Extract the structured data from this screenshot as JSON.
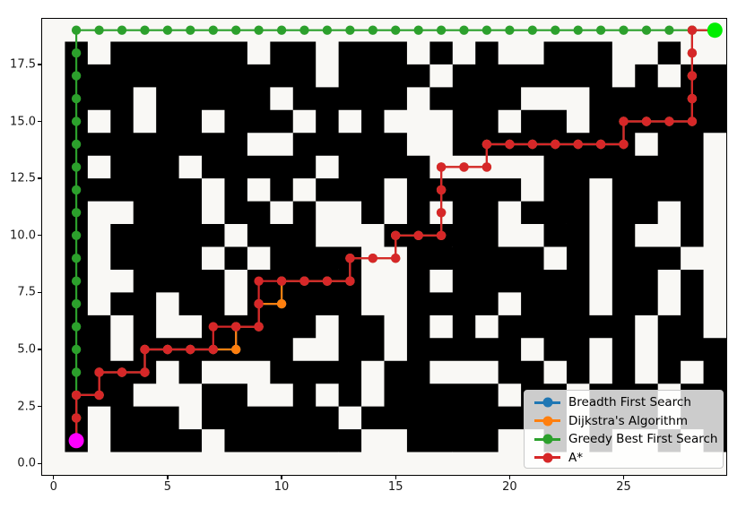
{
  "chart_data": {
    "type": "line",
    "title": "",
    "xlabel": "",
    "ylabel": "",
    "xlim": [
      -0.5,
      29.5
    ],
    "ylim": [
      -0.5,
      19.5
    ],
    "grid": false,
    "legend_position": "lower right",
    "xticks": {
      "values": [
        0,
        5,
        10,
        15,
        20,
        25
      ],
      "labels": [
        "0",
        "5",
        "10",
        "15",
        "20",
        "25"
      ]
    },
    "yticks": {
      "values": [
        0,
        2.5,
        5,
        7.5,
        10,
        12.5,
        15,
        17.5
      ],
      "labels": [
        "0.0",
        "2.5",
        "5.0",
        "7.5",
        "10.0",
        "12.5",
        "15.0",
        "17.5"
      ]
    },
    "maze": {
      "cols": 30,
      "rows": 20,
      "wall_char": "#",
      "free_char": ".",
      "wall_color": "#000000",
      "free_color": "#f9f8f5",
      "rows_top_to_bottom": [
        "..............................",
        ".#.######.##.###.#.#..###..#..",
        ".###########.####.#######.#.##",
        ".###.#####.#####.####...######",
        ".#.#.##.###.#.#...##.##.######",
        ".########..#####..########.##.",
        ".#.###.#####.####.....#######.",
        ".######.#.#.###.#####.##.####.",
        ".#..###.##.#..#.#.##.###.##.#.",
        ".#.#####.###...#####..##.#..#.",
        ".#.####.#.####..######.#.###..",
        ".#..####.#####..#.######.##.#.",
        ".#.##.##.#####..####.###.##.#.",
        ".##.#..#####.##.#.#.######.##.",
        ".##.#######..##.#####.##.#.###",
        ".####.#...####.##...##.#.#.#.#",
        ".###...##..#.#.#####.##.###.##",
        ".#.###.######.#########.###.##",
        ".#.####.######..####..#.#..#.#",
        ".............................."
      ]
    },
    "series": [
      {
        "name": "Breadth First Search",
        "color": "#1f77b4",
        "points": [
          [
            1,
            1
          ],
          [
            1,
            2
          ],
          [
            1,
            3
          ],
          [
            2,
            3
          ],
          [
            2,
            4
          ],
          [
            3,
            4
          ],
          [
            4,
            4
          ],
          [
            4,
            5
          ],
          [
            5,
            5
          ],
          [
            6,
            5
          ],
          [
            7,
            5
          ],
          [
            8,
            5
          ],
          [
            8,
            6
          ],
          [
            9,
            6
          ],
          [
            9,
            7
          ],
          [
            10,
            7
          ],
          [
            10,
            8
          ],
          [
            11,
            8
          ],
          [
            12,
            8
          ],
          [
            13,
            8
          ],
          [
            13,
            9
          ],
          [
            14,
            9
          ],
          [
            15,
            9
          ],
          [
            15,
            10
          ],
          [
            16,
            10
          ],
          [
            17,
            10
          ],
          [
            17,
            11
          ],
          [
            17,
            12
          ],
          [
            17,
            13
          ],
          [
            18,
            13
          ],
          [
            19,
            13
          ],
          [
            19,
            14
          ],
          [
            20,
            14
          ],
          [
            21,
            14
          ],
          [
            22,
            14
          ],
          [
            23,
            14
          ],
          [
            24,
            14
          ],
          [
            25,
            14
          ],
          [
            25,
            15
          ],
          [
            26,
            15
          ],
          [
            27,
            15
          ],
          [
            28,
            15
          ],
          [
            28,
            16
          ],
          [
            28,
            17
          ],
          [
            28,
            18
          ],
          [
            28,
            19
          ],
          [
            29,
            19
          ]
        ]
      },
      {
        "name": "Dijkstra's Algorithm",
        "color": "#ff7f0e",
        "points": [
          [
            1,
            1
          ],
          [
            1,
            2
          ],
          [
            1,
            3
          ],
          [
            2,
            3
          ],
          [
            2,
            4
          ],
          [
            3,
            4
          ],
          [
            4,
            4
          ],
          [
            4,
            5
          ],
          [
            5,
            5
          ],
          [
            6,
            5
          ],
          [
            7,
            5
          ],
          [
            8,
            5
          ],
          [
            8,
            6
          ],
          [
            9,
            6
          ],
          [
            9,
            7
          ],
          [
            10,
            7
          ],
          [
            10,
            8
          ],
          [
            11,
            8
          ],
          [
            12,
            8
          ],
          [
            13,
            8
          ],
          [
            13,
            9
          ],
          [
            14,
            9
          ],
          [
            15,
            9
          ],
          [
            15,
            10
          ],
          [
            16,
            10
          ],
          [
            17,
            10
          ],
          [
            17,
            11
          ],
          [
            17,
            12
          ],
          [
            17,
            13
          ],
          [
            18,
            13
          ],
          [
            19,
            13
          ],
          [
            19,
            14
          ],
          [
            20,
            14
          ],
          [
            21,
            14
          ],
          [
            22,
            14
          ],
          [
            23,
            14
          ],
          [
            24,
            14
          ],
          [
            25,
            14
          ],
          [
            25,
            15
          ],
          [
            26,
            15
          ],
          [
            27,
            15
          ],
          [
            28,
            15
          ],
          [
            28,
            16
          ],
          [
            28,
            17
          ],
          [
            28,
            18
          ],
          [
            28,
            19
          ],
          [
            29,
            19
          ]
        ]
      },
      {
        "name": "Greedy Best First Search",
        "color": "#2ca02c",
        "points": [
          [
            1,
            1
          ],
          [
            1,
            2
          ],
          [
            1,
            3
          ],
          [
            1,
            4
          ],
          [
            1,
            5
          ],
          [
            1,
            6
          ],
          [
            1,
            7
          ],
          [
            1,
            8
          ],
          [
            1,
            9
          ],
          [
            1,
            10
          ],
          [
            1,
            11
          ],
          [
            1,
            12
          ],
          [
            1,
            13
          ],
          [
            1,
            14
          ],
          [
            1,
            15
          ],
          [
            1,
            16
          ],
          [
            1,
            17
          ],
          [
            1,
            18
          ],
          [
            1,
            19
          ],
          [
            2,
            19
          ],
          [
            3,
            19
          ],
          [
            4,
            19
          ],
          [
            5,
            19
          ],
          [
            6,
            19
          ],
          [
            7,
            19
          ],
          [
            8,
            19
          ],
          [
            9,
            19
          ],
          [
            10,
            19
          ],
          [
            11,
            19
          ],
          [
            12,
            19
          ],
          [
            13,
            19
          ],
          [
            14,
            19
          ],
          [
            15,
            19
          ],
          [
            16,
            19
          ],
          [
            17,
            19
          ],
          [
            18,
            19
          ],
          [
            19,
            19
          ],
          [
            20,
            19
          ],
          [
            21,
            19
          ],
          [
            22,
            19
          ],
          [
            23,
            19
          ],
          [
            24,
            19
          ],
          [
            25,
            19
          ],
          [
            26,
            19
          ],
          [
            27,
            19
          ],
          [
            28,
            19
          ],
          [
            29,
            19
          ]
        ]
      },
      {
        "name": "A*",
        "color": "#d62728",
        "points": [
          [
            1,
            1
          ],
          [
            1,
            2
          ],
          [
            1,
            3
          ],
          [
            2,
            3
          ],
          [
            2,
            4
          ],
          [
            3,
            4
          ],
          [
            4,
            4
          ],
          [
            4,
            5
          ],
          [
            5,
            5
          ],
          [
            6,
            5
          ],
          [
            7,
            5
          ],
          [
            7,
            6
          ],
          [
            8,
            6
          ],
          [
            9,
            6
          ],
          [
            9,
            7
          ],
          [
            9,
            8
          ],
          [
            10,
            8
          ],
          [
            11,
            8
          ],
          [
            12,
            8
          ],
          [
            13,
            8
          ],
          [
            13,
            9
          ],
          [
            14,
            9
          ],
          [
            15,
            9
          ],
          [
            15,
            10
          ],
          [
            16,
            10
          ],
          [
            17,
            10
          ],
          [
            17,
            11
          ],
          [
            17,
            12
          ],
          [
            17,
            13
          ],
          [
            18,
            13
          ],
          [
            19,
            13
          ],
          [
            19,
            14
          ],
          [
            20,
            14
          ],
          [
            21,
            14
          ],
          [
            22,
            14
          ],
          [
            23,
            14
          ],
          [
            24,
            14
          ],
          [
            25,
            14
          ],
          [
            25,
            15
          ],
          [
            26,
            15
          ],
          [
            27,
            15
          ],
          [
            28,
            15
          ],
          [
            28,
            16
          ],
          [
            28,
            17
          ],
          [
            28,
            18
          ],
          [
            28,
            19
          ],
          [
            29,
            19
          ]
        ]
      }
    ],
    "markers": {
      "start": {
        "x": 1,
        "y": 1,
        "color": "#ff00ff"
      },
      "end": {
        "x": 29,
        "y": 19,
        "color": "#00ee00"
      }
    },
    "style": {
      "line_width": 2.2,
      "marker_radius": 5.2,
      "endpoint_radius": 8.5,
      "tick_color": "#000000"
    }
  }
}
